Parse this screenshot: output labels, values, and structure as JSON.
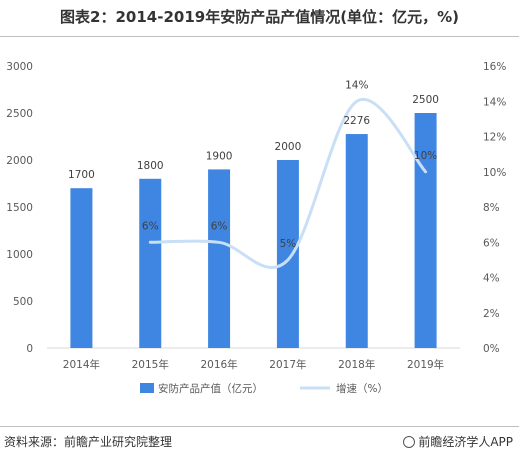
{
  "title": "图表2：2014-2019年安防产品产值情况(单位：亿元，%)",
  "footer": {
    "source": "资料来源：前瞻产业研究院整理",
    "brand": "前瞻经济学人APP"
  },
  "chart_data": {
    "type": "bar",
    "categories": [
      "2014年",
      "2015年",
      "2016年",
      "2017年",
      "2018年",
      "2019年"
    ],
    "series": [
      {
        "name": "安防产品产值（亿元）",
        "type": "bar",
        "axis": "left",
        "values": [
          1700,
          1800,
          1900,
          2000,
          2276,
          2500
        ],
        "labels": [
          "1700",
          "1800",
          "1900",
          "2000",
          "2276",
          "2500"
        ],
        "color": "#3f86e2"
      },
      {
        "name": "增速（%）",
        "type": "line",
        "axis": "right",
        "smooth": true,
        "values": [
          null,
          6,
          6,
          5,
          14,
          10
        ],
        "labels": [
          "",
          "6%",
          "6%",
          "5%",
          "14%",
          "10%"
        ],
        "color": "#c9dff5"
      }
    ],
    "y_left": {
      "ylim": [
        0,
        3000
      ],
      "ticks": [
        "0",
        "500",
        "1000",
        "1500",
        "2000",
        "2500",
        "3000"
      ]
    },
    "y_right": {
      "ylim": [
        0,
        16
      ],
      "ticks": [
        "0%",
        "2%",
        "4%",
        "6%",
        "8%",
        "10%",
        "12%",
        "14%",
        "16%"
      ]
    },
    "legend_position": "bottom",
    "grid": false
  }
}
